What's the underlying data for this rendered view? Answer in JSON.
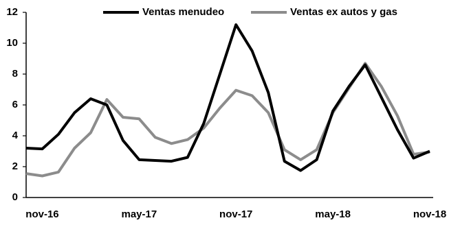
{
  "chart_data": {
    "type": "line",
    "categories": [
      null,
      "nov-16",
      null,
      null,
      null,
      null,
      null,
      "may-17",
      null,
      null,
      null,
      null,
      null,
      "nov-17",
      null,
      null,
      null,
      null,
      null,
      "may-18",
      null,
      null,
      null,
      null,
      null,
      "nov-18"
    ],
    "series": [
      {
        "name": "Ventas menudeo",
        "color": "#000000",
        "values": [
          3.2,
          3.15,
          4.1,
          5.5,
          6.4,
          6.0,
          3.7,
          2.45,
          2.4,
          2.35,
          2.6,
          4.8,
          8.0,
          11.2,
          9.5,
          6.8,
          2.35,
          1.75,
          2.45,
          5.6,
          7.2,
          8.6,
          6.5,
          4.4,
          2.55,
          3.0
        ]
      },
      {
        "name": "Ventas ex autos y gas",
        "color": "#8c8c8c",
        "values": [
          1.55,
          1.4,
          1.65,
          3.2,
          4.2,
          6.35,
          5.2,
          5.1,
          3.9,
          3.5,
          3.75,
          4.5,
          5.8,
          6.95,
          6.6,
          5.5,
          3.1,
          2.45,
          3.1,
          5.5,
          7.1,
          8.7,
          7.2,
          5.3,
          2.8,
          2.95
        ]
      }
    ],
    "ylim": [
      0,
      12
    ],
    "yticks": [
      0,
      2,
      4,
      6,
      8,
      10,
      12
    ],
    "grid": false,
    "legend": "top"
  }
}
